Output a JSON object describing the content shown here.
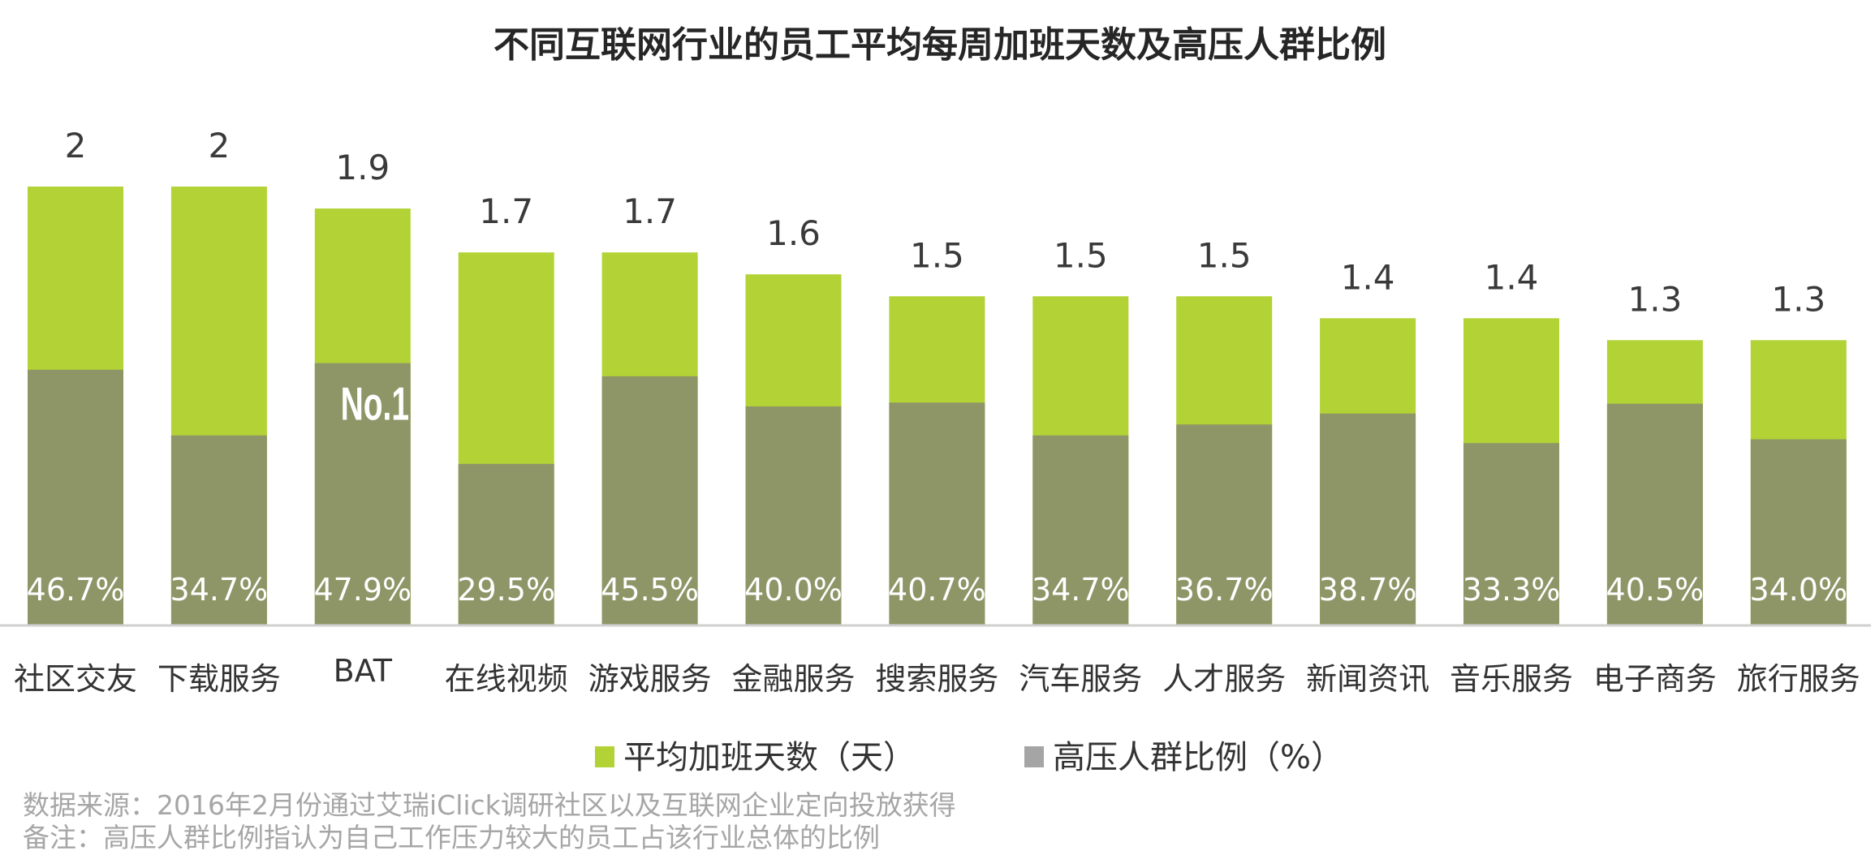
{
  "chart_data": {
    "type": "bar",
    "stacked": "overlay",
    "title": "不同互联网行业的员工平均每周加班天数及高压人群比例",
    "categories": [
      "社区交友",
      "下载服务",
      "BAT",
      "在线视频",
      "游戏服务",
      "金融服务",
      "搜索服务",
      "汽车服务",
      "人才服务",
      "新闻资讯",
      "音乐服务",
      "电子商务",
      "旅行服务"
    ],
    "series": [
      {
        "name": "平均加班天数（天）",
        "color": "#b2d235",
        "values": [
          2,
          2,
          1.9,
          1.7,
          1.7,
          1.6,
          1.5,
          1.5,
          1.5,
          1.4,
          1.4,
          1.3,
          1.3
        ],
        "labels": [
          "2",
          "2",
          "1.9",
          "1.7",
          "1.7",
          "1.6",
          "1.5",
          "1.5",
          "1.5",
          "1.4",
          "1.4",
          "1.3",
          "1.3"
        ]
      },
      {
        "name": "高压人群比例（%）",
        "color": "#8e9668",
        "legend_color": "#a5a5a5",
        "values": [
          46.7,
          34.7,
          47.9,
          29.5,
          45.5,
          40.0,
          40.7,
          34.7,
          36.7,
          38.7,
          33.3,
          40.5,
          34.0
        ],
        "labels": [
          "46.7%",
          "34.7%",
          "47.9%",
          "29.5%",
          "45.5%",
          "40.0%",
          "40.7%",
          "34.7%",
          "36.7%",
          "38.7%",
          "33.3%",
          "40.5%",
          "34.0%"
        ]
      }
    ],
    "annotation": {
      "category": "BAT",
      "text": "No.1"
    },
    "legend_position": "bottom",
    "grid": false,
    "xlabel": "",
    "ylabel": ""
  },
  "footnotes": [
    "数据来源：2016年2月份通过艾瑞iClick调研社区以及互联网企业定向投放获得",
    "备注：高压人群比例指认为自己工作压力较大的员工占该行业总体的比例"
  ]
}
